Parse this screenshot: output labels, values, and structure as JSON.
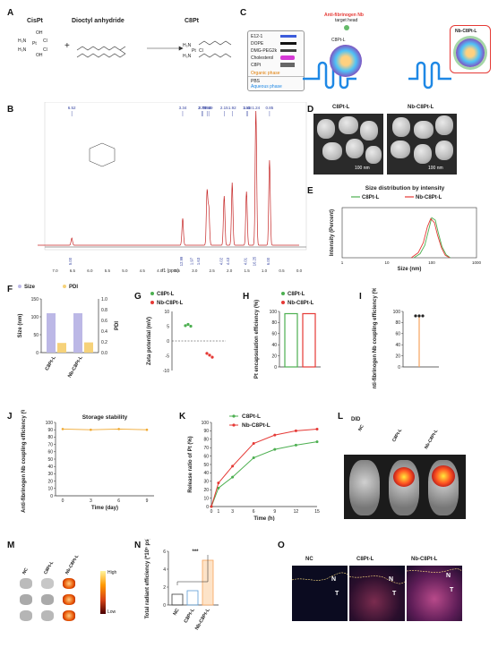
{
  "panels": {
    "A": "A",
    "B": "B",
    "C": "C",
    "D": "D",
    "E": "E",
    "F": "F",
    "G": "G",
    "H": "H",
    "I": "I",
    "J": "J",
    "K": "K",
    "L": "L",
    "M": "M",
    "N": "N",
    "O": "O"
  },
  "scheme_a": {
    "reactant1": "CisPt",
    "reactant2": "Dioctyl anhydride",
    "product": "C8Pt",
    "plus": "+",
    "cispt_ligands": [
      "OH",
      "H₃N",
      "Pt",
      "Cl",
      "H₃N",
      "OH",
      "Cl"
    ]
  },
  "scheme_c": {
    "reagents": [
      "E12-1",
      "DOPE",
      "DMG-PEG2k",
      "Cholesterol",
      "C8Pt"
    ],
    "organic_phase": "Organic phase",
    "pbs": "PBS",
    "aqueous_phase": "Aqueous phase",
    "antibody": "Anti-fibrinogen Nb",
    "target_head": "target head",
    "c8ptl": "C8Pt-L",
    "nbc8ptl": "Nb-C8Pt-L"
  },
  "nmr": {
    "peak_labels": [
      "6.52",
      "3.34",
      "2.64",
      "2.79",
      "2.77",
      "2.59",
      "2.15",
      "1.92",
      "1.51",
      "1.48",
      "1.24",
      "0.85"
    ],
    "integrals": [
      "5.00",
      "12.99",
      "1.97",
      "1.63",
      "4.02",
      "4.43",
      "4.01",
      "16.25",
      "6.00"
    ],
    "x_ticks": [
      "7.0",
      "6.5",
      "6.0",
      "5.5",
      "5.0",
      "4.5",
      "4.0",
      "3.5",
      "3.0",
      "2.5",
      "2.0",
      "1.5",
      "1.0",
      "0.5",
      "0.0"
    ],
    "x_label": "f1 (ppm)"
  },
  "tem": {
    "left_title": "C8Pt-L",
    "right_title": "Nb-C8Pt-L",
    "scale_left": "100 nm",
    "scale_right": "100 nm"
  },
  "chart_data": [
    {
      "panel": "E",
      "type": "line",
      "title": "Size distribution by intensity",
      "xlabel": "Size (nm)",
      "ylabel": "Intensity (Percent)",
      "x_ticks": [
        "1",
        "10",
        "100",
        "1000"
      ],
      "series": [
        {
          "name": "C8Pt-L",
          "color": "#4caf50",
          "x": [
            40,
            55,
            70,
            85,
            100,
            120,
            140,
            170,
            210,
            260
          ],
          "y": [
            0,
            8,
            25,
            55,
            80,
            75,
            50,
            22,
            6,
            0
          ]
        },
        {
          "name": "Nb-C8Pt-L",
          "color": "#e53935",
          "x": [
            35,
            50,
            65,
            80,
            95,
            115,
            135,
            165,
            200,
            250
          ],
          "y": [
            0,
            10,
            30,
            62,
            78,
            70,
            45,
            20,
            5,
            0
          ]
        }
      ]
    },
    {
      "panel": "F",
      "type": "bar",
      "ylabel": "Size (nm)",
      "y2label": "PDI",
      "legend": [
        "Size",
        "PDI"
      ],
      "categories": [
        "C8Pt-L",
        "Nb-C8Pt-L"
      ],
      "ylim": [
        0,
        150
      ],
      "y_ticks": [
        "0",
        "50",
        "100",
        "150"
      ],
      "y2_ticks": [
        "0.0",
        "0.2",
        "0.4",
        "0.6",
        "0.8",
        "1.0"
      ],
      "series": [
        {
          "name": "Size",
          "color": "#bcb8e6",
          "values": [
            110,
            110
          ]
        },
        {
          "name": "PDI",
          "color": "#f6d27a",
          "values": [
            0.18,
            0.19
          ]
        }
      ]
    },
    {
      "panel": "G",
      "type": "scatter",
      "ylabel": "Zeta potential (mV)",
      "ylim": [
        -10,
        10
      ],
      "y_ticks": [
        "10",
        "5",
        "0",
        "-5",
        "-10"
      ],
      "series": [
        {
          "name": "C8Pt-L",
          "color": "#4caf50",
          "values": [
            5.2,
            5.6,
            5.0
          ]
        },
        {
          "name": "Nb-C8Pt-L",
          "color": "#e53935",
          "values": [
            -4.2,
            -4.8,
            -5.5
          ]
        }
      ]
    },
    {
      "panel": "H",
      "type": "bar",
      "ylabel": "Pt encapsulation efficiency (%)",
      "ylim": [
        0,
        100
      ],
      "y_ticks": [
        "0",
        "20",
        "40",
        "60",
        "80",
        "100"
      ],
      "series": [
        {
          "name": "C8Pt-L",
          "color": "#4caf50",
          "values": [
            96
          ]
        },
        {
          "name": "Nb-C8Pt-L",
          "color": "#e53935",
          "values": [
            96
          ]
        }
      ]
    },
    {
      "panel": "I",
      "type": "bar",
      "ylabel": "Anti-fibrinogen Nb coupling efficiency (%)",
      "ylim": [
        0,
        100
      ],
      "y_ticks": [
        "0",
        "20",
        "40",
        "60",
        "80",
        "100"
      ],
      "values": [
        92
      ]
    },
    {
      "panel": "J",
      "type": "line",
      "title": "Storage stability",
      "xlabel": "Time (day)",
      "ylabel": "Anti-fibrinogen Nb coupling efficiency (%)",
      "x": [
        0,
        3,
        6,
        9
      ],
      "values": [
        91,
        90,
        91,
        90
      ],
      "ylim": [
        0,
        100
      ],
      "y_ticks": [
        "0",
        "10",
        "20",
        "30",
        "40",
        "50",
        "60",
        "70",
        "80",
        "90",
        "100"
      ],
      "x_ticks": [
        "0",
        "3",
        "6",
        "9"
      ]
    },
    {
      "panel": "K",
      "type": "line",
      "xlabel": "Time (h)",
      "ylabel": "Release ratio of Pt (%)",
      "x": [
        0,
        1,
        3,
        6,
        9,
        12,
        15
      ],
      "ylim": [
        0,
        100
      ],
      "y_ticks": [
        "0",
        "10",
        "20",
        "30",
        "40",
        "50",
        "60",
        "70",
        "80",
        "90",
        "100"
      ],
      "x_ticks": [
        "0",
        "1",
        "3",
        "6",
        "9",
        "12",
        "15"
      ],
      "series": [
        {
          "name": "C8Pt-L",
          "color": "#4caf50",
          "values": [
            0,
            22,
            35,
            58,
            68,
            73,
            77
          ]
        },
        {
          "name": "Nb-C8Pt-L",
          "color": "#e53935",
          "values": [
            0,
            28,
            48,
            75,
            85,
            90,
            92
          ]
        }
      ]
    },
    {
      "panel": "N",
      "type": "bar",
      "ylabel": "Total radiant efficiency (*10⁹ ps)",
      "categories": [
        "NC",
        "C8Pt-L",
        "Nb-C8Pt-L"
      ],
      "values": [
        1.2,
        1.6,
        5.0
      ],
      "ylim": [
        0,
        6
      ],
      "y_ticks": [
        "0",
        "2",
        "4",
        "6"
      ],
      "significance": "***",
      "colors": [
        "#3a3a3a",
        "#5b9bd5",
        "#f7a35c"
      ]
    }
  ],
  "panel_l": {
    "title": "DID",
    "groups": [
      "NC",
      "C8Pt-L",
      "Nb-C8Pt-L"
    ]
  },
  "panel_m": {
    "groups": [
      "NC",
      "C8Pt-L",
      "Nb-C8Pt-L"
    ],
    "scale_high": "High",
    "scale_low": "Low"
  },
  "panel_o": {
    "groups": [
      "NC",
      "C8Pt-L",
      "Nb-C8Pt-L"
    ],
    "n_label": "N",
    "t_label": "T"
  }
}
